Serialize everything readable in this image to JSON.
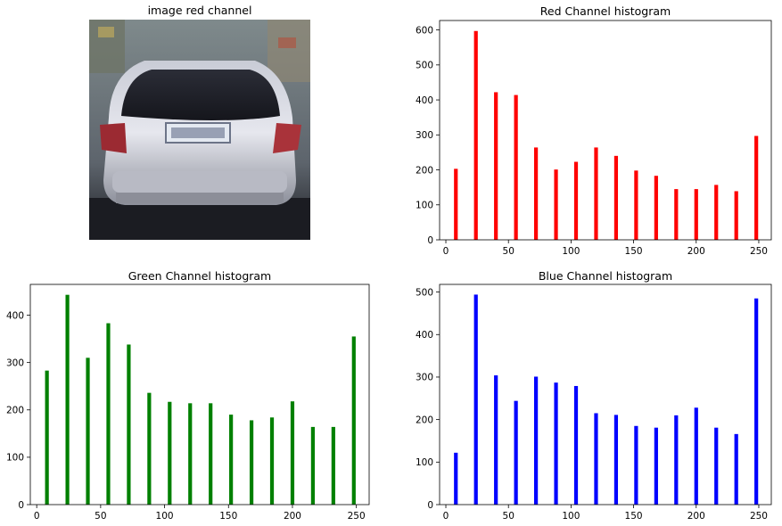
{
  "image_panel": {
    "title": "image red channel",
    "picture": "rear-view-of-silver-car"
  },
  "chart_data": [
    {
      "type": "bar",
      "title": "Red Channel histogram",
      "color": "#ff0000",
      "x": [
        8,
        24,
        40,
        56,
        72,
        88,
        104,
        120,
        136,
        152,
        168,
        184,
        200,
        216,
        232,
        248
      ],
      "values": [
        203,
        597,
        422,
        414,
        264,
        201,
        223,
        264,
        240,
        198,
        183,
        145,
        145,
        157,
        139,
        297
      ],
      "xlim": [
        -5,
        260
      ],
      "ylim": [
        0,
        627
      ],
      "xticks": [
        0,
        50,
        100,
        150,
        200,
        250
      ],
      "yticks": [
        0,
        100,
        200,
        300,
        400,
        500,
        600
      ],
      "xlabel": "",
      "ylabel": ""
    },
    {
      "type": "bar",
      "title": "Green Channel histogram",
      "color": "#008000",
      "x": [
        8,
        24,
        40,
        56,
        72,
        88,
        104,
        120,
        136,
        152,
        168,
        184,
        200,
        216,
        232,
        248
      ],
      "values": [
        283,
        443,
        310,
        383,
        338,
        236,
        217,
        214,
        214,
        190,
        178,
        184,
        218,
        164,
        164,
        355
      ],
      "xlim": [
        -5,
        260
      ],
      "ylim": [
        0,
        465
      ],
      "xticks": [
        0,
        50,
        100,
        150,
        200,
        250
      ],
      "yticks": [
        0,
        100,
        200,
        300,
        400
      ],
      "xlabel": "",
      "ylabel": ""
    },
    {
      "type": "bar",
      "title": "Blue Channel histogram",
      "color": "#0000ff",
      "x": [
        8,
        24,
        40,
        56,
        72,
        88,
        104,
        120,
        136,
        152,
        168,
        184,
        200,
        216,
        232,
        248
      ],
      "values": [
        122,
        494,
        304,
        244,
        301,
        287,
        279,
        215,
        211,
        185,
        181,
        210,
        228,
        181,
        166,
        485
      ],
      "xlim": [
        -5,
        260
      ],
      "ylim": [
        0,
        518
      ],
      "xticks": [
        0,
        50,
        100,
        150,
        200,
        250
      ],
      "yticks": [
        0,
        100,
        200,
        300,
        400,
        500
      ],
      "xlabel": "",
      "ylabel": ""
    }
  ]
}
